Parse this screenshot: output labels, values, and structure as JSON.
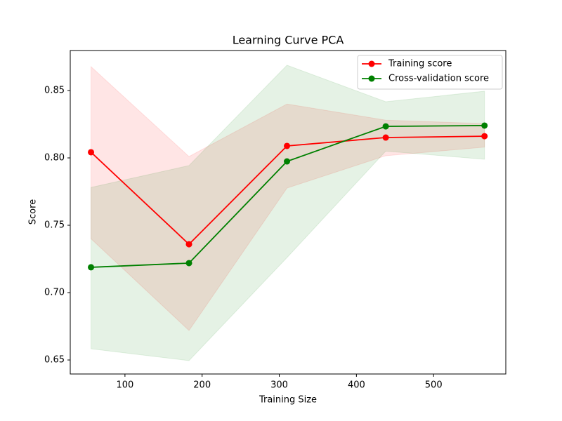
{
  "chart_data": {
    "type": "line",
    "title": "Learning Curve PCA",
    "x_label": "Training Size",
    "y_label": "Score",
    "x": [
      56,
      183,
      310,
      438,
      566
    ],
    "series": [
      {
        "name": "Training score",
        "color": "#ff0000",
        "values": [
          0.8042,
          0.7359,
          0.8089,
          0.8151,
          0.8161
        ],
        "band_lower": [
          0.74,
          0.6719,
          0.7776,
          0.8016,
          0.808
        ],
        "band_upper": [
          0.8677,
          0.801,
          0.84,
          0.828,
          0.8255
        ]
      },
      {
        "name": "Cross-validation score",
        "color": "#008000",
        "values": [
          0.7188,
          0.7219,
          0.7974,
          0.8234,
          0.824
        ],
        "band_lower": [
          0.6583,
          0.6495,
          0.726,
          0.805,
          0.799
        ],
        "band_upper": [
          0.7781,
          0.7943,
          0.8688,
          0.8417,
          0.8495
        ]
      }
    ],
    "xlim": [
      29.1,
      593.6
    ],
    "xticks": [
      100,
      200,
      300,
      400,
      500
    ],
    "ylim": [
      0.6396,
      0.8797
    ],
    "yticks": [
      {
        "value": 0.65,
        "label": "0.65"
      },
      {
        "value": 0.7,
        "label": "0.70"
      },
      {
        "value": 0.75,
        "label": "0.75"
      },
      {
        "value": 0.8,
        "label": "0.80"
      },
      {
        "value": 0.85,
        "label": "0.85"
      }
    ],
    "legend": "upper right",
    "band_opacity": 0.1
  }
}
